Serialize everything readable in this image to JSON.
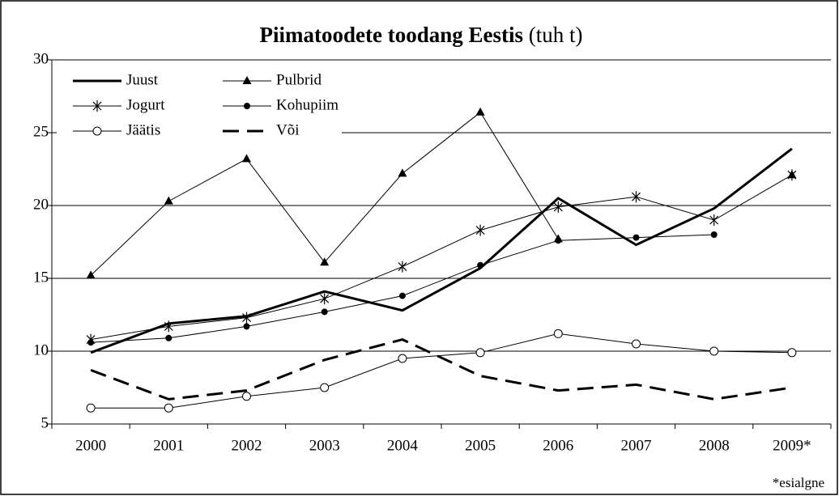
{
  "chart_data": {
    "type": "line",
    "title": "Piimatoodete toodang Eestis",
    "title_unit": "(tuh t)",
    "note": "*esialgne",
    "categories": [
      "2000",
      "2001",
      "2002",
      "2003",
      "2004",
      "2005",
      "2006",
      "2007",
      "2008",
      "2009*"
    ],
    "ylim": [
      5,
      30
    ],
    "yticks": [
      5,
      10,
      15,
      20,
      25,
      30
    ],
    "grid": true,
    "legend": "top-left",
    "series": [
      {
        "name": "Juust",
        "color": "#000000",
        "line_style": "solid",
        "line_width": 3,
        "marker": "none",
        "values": [
          9.9,
          11.9,
          12.4,
          14.1,
          12.8,
          15.7,
          20.5,
          17.3,
          19.8,
          23.9
        ]
      },
      {
        "name": "Pulbrid",
        "color": "#000000",
        "line_style": "solid",
        "line_width": 1,
        "marker": "triangle",
        "values": [
          15.2,
          20.3,
          23.2,
          16.1,
          22.2,
          26.4,
          17.7,
          null,
          null,
          22.1
        ]
      },
      {
        "name": "Jogurt",
        "color": "#000000",
        "line_style": "solid",
        "line_width": 1,
        "marker": "star",
        "values": [
          10.8,
          11.7,
          12.3,
          13.6,
          15.8,
          18.3,
          19.9,
          20.6,
          19.0,
          22.1
        ]
      },
      {
        "name": "Kohupiim",
        "color": "#000000",
        "line_style": "solid",
        "line_width": 1,
        "marker": "dot",
        "values": [
          10.6,
          10.9,
          11.7,
          12.7,
          13.8,
          15.9,
          17.6,
          17.8,
          18.0,
          null
        ]
      },
      {
        "name": "Jäätis",
        "color": "#000000",
        "line_style": "solid",
        "line_width": 1,
        "marker": "circle",
        "values": [
          6.1,
          6.1,
          6.9,
          7.5,
          9.5,
          9.9,
          11.2,
          10.5,
          10.0,
          9.9
        ]
      },
      {
        "name": "Või",
        "color": "#000000",
        "line_style": "dashed",
        "line_width": 3,
        "marker": "none",
        "values": [
          8.7,
          6.7,
          7.3,
          9.4,
          10.8,
          8.3,
          7.3,
          7.7,
          6.7,
          7.5
        ]
      }
    ]
  }
}
